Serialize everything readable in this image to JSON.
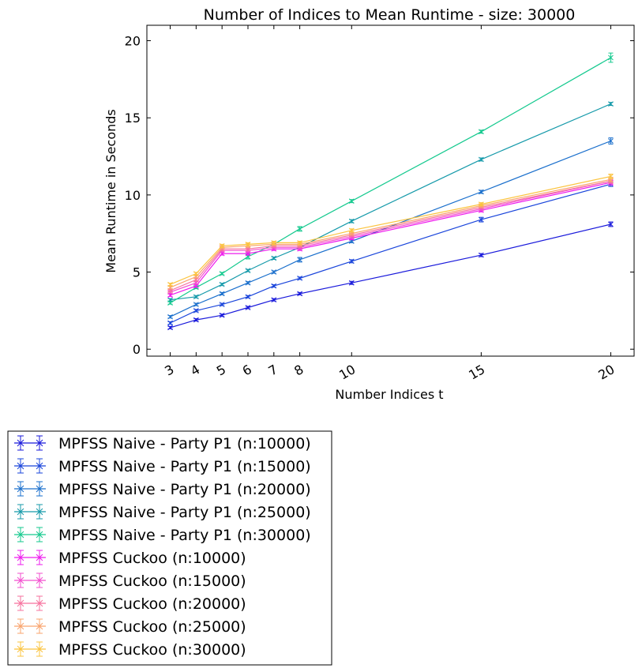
{
  "chart_data": {
    "type": "line",
    "title": "Number of Indices to Mean Runtime - size: 30000",
    "xlabel": "Number Indices t",
    "ylabel": "Mean Runtime in Seconds",
    "x": [
      3,
      4,
      5,
      6,
      7,
      8,
      10,
      15,
      20
    ],
    "xlim": [
      2.1,
      20.9
    ],
    "ylim": [
      -0.45,
      21
    ],
    "xticks": [
      3,
      4,
      5,
      6,
      7,
      8,
      10,
      15,
      20
    ],
    "yticks": [
      0,
      5,
      10,
      15,
      20
    ],
    "xtick_labels": [
      "3",
      "4",
      "5",
      "6",
      "7",
      "8",
      "10",
      "15",
      "20"
    ],
    "ytick_labels": [
      "0",
      "5",
      "10",
      "15",
      "20"
    ],
    "grid": false,
    "legend_position": "below-left",
    "series": [
      {
        "name": "MPFSS Naive - Party P1 (n:10000)",
        "color": "#1a1adb",
        "values": [
          1.4,
          1.9,
          2.2,
          2.7,
          3.2,
          3.6,
          4.3,
          6.1,
          8.1
        ],
        "errors": [
          0.08,
          0.08,
          0.08,
          0.08,
          0.08,
          0.08,
          0.1,
          0.1,
          0.15
        ]
      },
      {
        "name": "MPFSS Naive - Party P1 (n:15000)",
        "color": "#1a45db",
        "values": [
          1.7,
          2.5,
          2.9,
          3.4,
          4.1,
          4.6,
          5.7,
          8.4,
          10.7
        ],
        "errors": [
          0.08,
          0.08,
          0.08,
          0.08,
          0.08,
          0.08,
          0.1,
          0.15,
          0.15
        ]
      },
      {
        "name": "MPFSS Naive - Party P1 (n:20000)",
        "color": "#1a6fcc",
        "values": [
          2.1,
          2.9,
          3.6,
          4.3,
          5.0,
          5.8,
          7.0,
          10.2,
          13.5
        ],
        "errors": [
          0.08,
          0.08,
          0.08,
          0.08,
          0.08,
          0.15,
          0.1,
          0.1,
          0.2
        ]
      },
      {
        "name": "MPFSS Naive - Party P1 (n:25000)",
        "color": "#169aaa",
        "values": [
          3.2,
          3.4,
          4.2,
          5.1,
          5.9,
          6.6,
          8.3,
          12.3,
          15.9
        ],
        "errors": [
          0.08,
          0.08,
          0.08,
          0.08,
          0.08,
          0.08,
          0.1,
          0.1,
          0.1
        ]
      },
      {
        "name": "MPFSS Naive - Party P1 (n:30000)",
        "color": "#14c98e",
        "values": [
          3.0,
          4.0,
          4.9,
          6.0,
          6.8,
          7.8,
          9.6,
          14.1,
          18.9
        ],
        "errors": [
          0.08,
          0.08,
          0.08,
          0.15,
          0.08,
          0.15,
          0.1,
          0.1,
          0.3
        ]
      },
      {
        "name": "MPFSS Cuckoo (n:10000)",
        "color": "#ee1aee",
        "values": [
          3.5,
          4.1,
          6.2,
          6.2,
          6.5,
          6.5,
          7.2,
          9.0,
          10.8
        ],
        "errors": [
          0.08,
          0.08,
          0.1,
          0.1,
          0.1,
          0.1,
          0.1,
          0.1,
          0.15
        ]
      },
      {
        "name": "MPFSS Cuckoo (n:15000)",
        "color": "#f34fcf",
        "values": [
          3.7,
          4.3,
          6.4,
          6.4,
          6.6,
          6.6,
          7.3,
          9.1,
          10.9
        ],
        "errors": [
          0.08,
          0.08,
          0.1,
          0.1,
          0.1,
          0.1,
          0.1,
          0.1,
          0.15
        ]
      },
      {
        "name": "MPFSS Cuckoo (n:20000)",
        "color": "#f6729e",
        "values": [
          3.8,
          4.5,
          6.5,
          6.5,
          6.7,
          6.7,
          7.4,
          9.2,
          10.9
        ],
        "errors": [
          0.08,
          0.08,
          0.1,
          0.1,
          0.1,
          0.1,
          0.1,
          0.1,
          0.15
        ]
      },
      {
        "name": "MPFSS Cuckoo (n:25000)",
        "color": "#f9a46e",
        "values": [
          4.0,
          4.7,
          6.6,
          6.7,
          6.8,
          6.8,
          7.5,
          9.3,
          11.0
        ],
        "errors": [
          0.08,
          0.08,
          0.1,
          0.1,
          0.1,
          0.1,
          0.1,
          0.1,
          0.15
        ]
      },
      {
        "name": "MPFSS Cuckoo (n:30000)",
        "color": "#fbc43f",
        "values": [
          4.2,
          4.9,
          6.7,
          6.8,
          6.9,
          6.9,
          7.7,
          9.4,
          11.2
        ],
        "errors": [
          0.08,
          0.08,
          0.1,
          0.1,
          0.1,
          0.1,
          0.1,
          0.1,
          0.15
        ]
      }
    ]
  }
}
